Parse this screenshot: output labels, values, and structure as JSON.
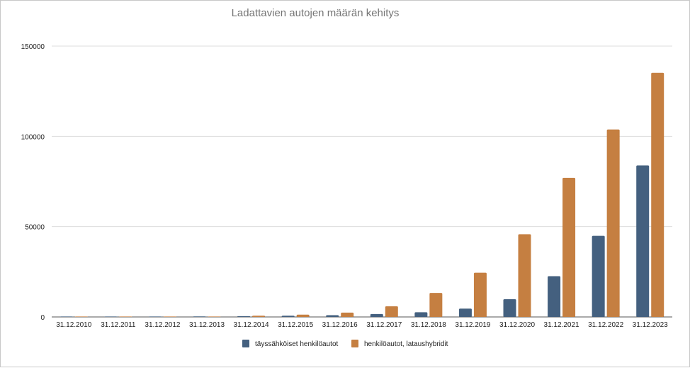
{
  "chart_data": {
    "type": "bar",
    "title": "Ladattavien autojen määrän kehitys",
    "xlabel": "",
    "ylabel": "",
    "categories": [
      "31.12.2010",
      "31.12.2011",
      "31.12.2012",
      "31.12.2013",
      "31.12.2014",
      "31.12.2015",
      "31.12.2016",
      "31.12.2017",
      "31.12.2018",
      "31.12.2019",
      "31.12.2020",
      "31.12.2021",
      "31.12.2022",
      "31.12.2023"
    ],
    "series": [
      {
        "name": "täyssähköiset henkilöautot",
        "color": "#44607f",
        "values": [
          10,
          40,
          150,
          280,
          450,
          700,
          1000,
          1600,
          2600,
          4600,
          9800,
          22600,
          44900,
          83900
        ]
      },
      {
        "name": "henkilöautot, lataushybridit",
        "color": "#c57f41",
        "values": [
          0,
          10,
          100,
          250,
          700,
          1300,
          2400,
          5900,
          13300,
          24500,
          45800,
          77000,
          103800,
          135200
        ]
      }
    ],
    "yticks": [
      0,
      50000,
      100000,
      150000
    ],
    "ytick_labels": [
      "0",
      "50000",
      "100000",
      "150000"
    ],
    "ylim": [
      0,
      150000
    ],
    "grid": true,
    "legend": "bottom"
  }
}
